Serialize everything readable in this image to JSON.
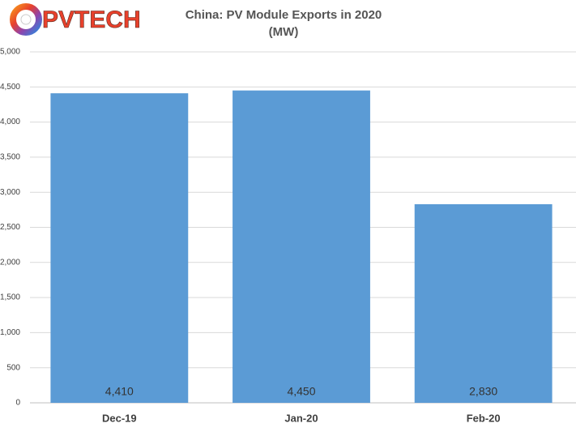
{
  "logo": "PVTECH",
  "chart_data": {
    "type": "bar",
    "title": "China: PV Module Exports in 2020",
    "subtitle": "(MW)",
    "categories": [
      "Dec-19",
      "Jan-20",
      "Feb-20"
    ],
    "values": [
      4410,
      4450,
      2830
    ],
    "value_labels": [
      "4,410",
      "4,450",
      "2,830"
    ],
    "color": "#5b9bd5",
    "ylim": [
      0,
      5000
    ],
    "yticks": [
      0,
      500,
      {
        "value": 1000,
        "label": "1,000"
      },
      {
        "value": 1500,
        "label": "1,500"
      },
      {
        "value": 2000,
        "label": "2,000"
      },
      {
        "value": 2500,
        "label": "2,500"
      },
      {
        "value": 3000,
        "label": "3,000"
      },
      {
        "value": 3500,
        "label": "3,500"
      },
      {
        "value": 4000,
        "label": "4,000"
      },
      {
        "value": 4500,
        "label": "4,500"
      },
      {
        "value": 5000,
        "label": "5,000"
      }
    ],
    "grid": true
  }
}
